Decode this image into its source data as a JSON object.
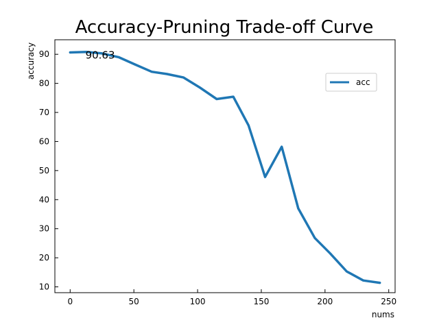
{
  "chart_data": {
    "type": "line",
    "title": "Accuracy-Pruning Trade-off Curve",
    "xlabel": "nums",
    "ylabel": "accuracy",
    "xlim": [
      -12,
      255
    ],
    "ylim": [
      8,
      95
    ],
    "xticks": [
      0,
      50,
      100,
      150,
      200,
      250
    ],
    "yticks": [
      10,
      20,
      30,
      40,
      50,
      60,
      70,
      80,
      90
    ],
    "grid": false,
    "legend_position": "upper-right",
    "color": "#1f77b4",
    "series": [
      {
        "name": "acc",
        "x": [
          0,
          13,
          25,
          38,
          51,
          64,
          76,
          89,
          102,
          115,
          128,
          140,
          153,
          166,
          179,
          192,
          204,
          217,
          230,
          243
        ],
        "y": [
          90.63,
          90.8,
          90.3,
          89.0,
          86.5,
          84.0,
          83.2,
          82.0,
          78.5,
          74.6,
          75.4,
          65.5,
          47.8,
          58.2,
          37.0,
          26.8,
          21.5,
          15.3,
          12.2,
          11.4
        ]
      }
    ],
    "annotations": [
      {
        "text": "90.63",
        "x": 12,
        "y": 88.5
      }
    ]
  }
}
